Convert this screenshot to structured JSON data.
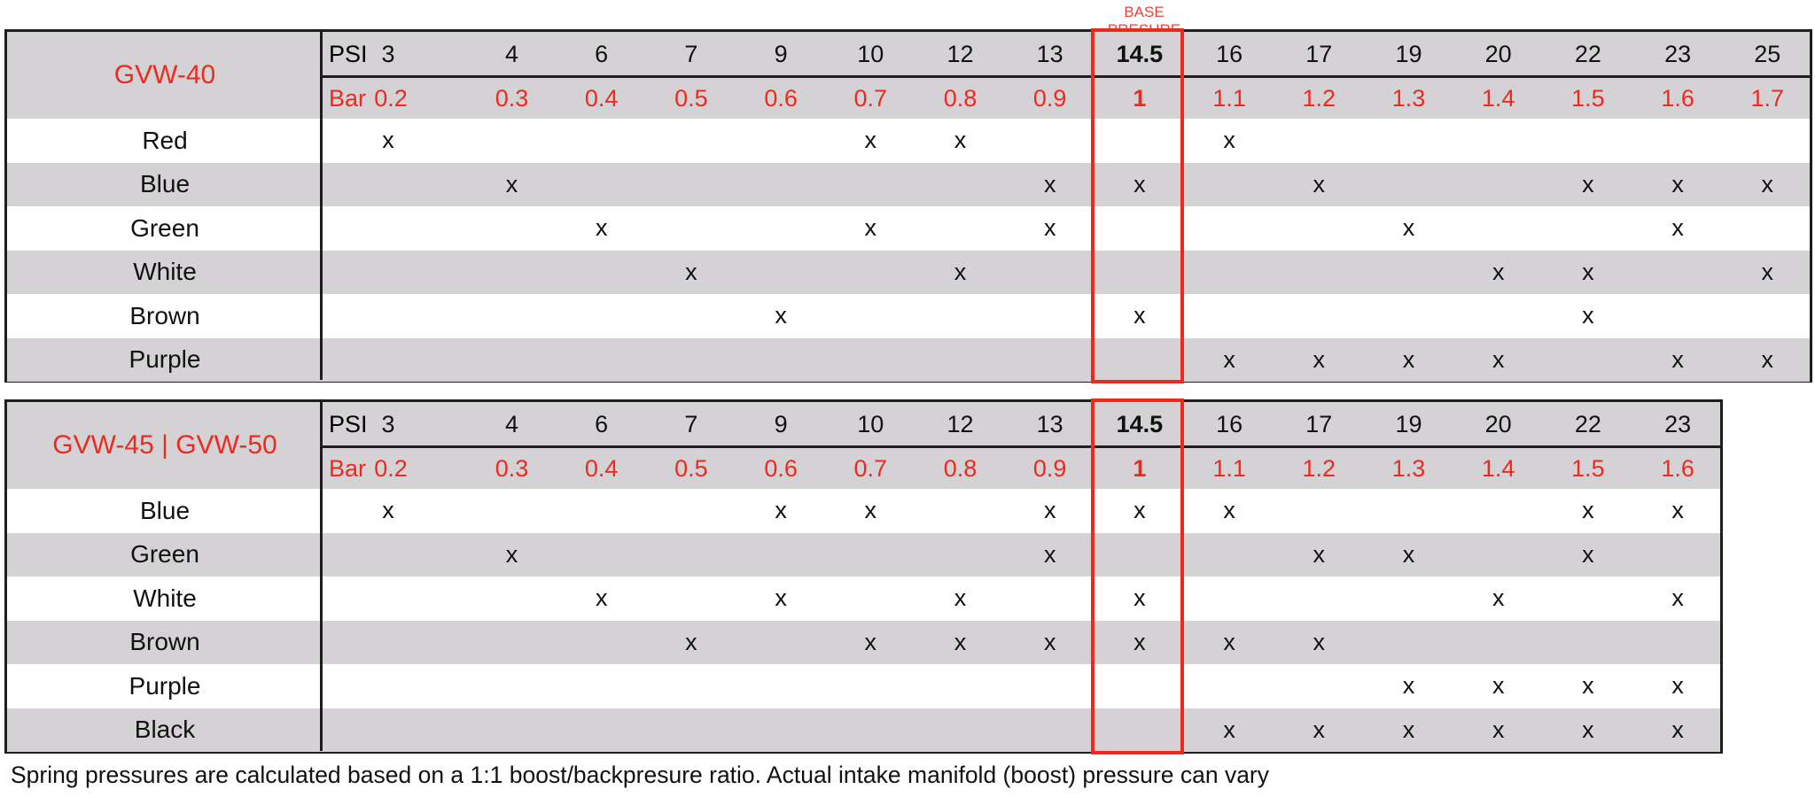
{
  "base_label": "BASE PRESURE",
  "colors": {
    "accent_red": "#ee2a1e",
    "row_gray": "#d5d2d6",
    "border": "#1e1e1e"
  },
  "psi_label": "PSI",
  "bar_label": "Bar",
  "base_psi": "14.5",
  "tables": [
    {
      "title": "GVW-40",
      "psi": [
        "3",
        "4",
        "6",
        "7",
        "9",
        "10",
        "12",
        "13",
        "14.5",
        "16",
        "17",
        "19",
        "20",
        "22",
        "23",
        "25"
      ],
      "bar": [
        "0.2",
        "0.3",
        "0.4",
        "0.5",
        "0.6",
        "0.7",
        "0.8",
        "0.9",
        "1",
        "1.1",
        "1.2",
        "1.3",
        "1.4",
        "1.5",
        "1.6",
        "1.7"
      ],
      "rows": [
        {
          "label": "Red",
          "marks": [
            "3",
            "10",
            "12",
            "16"
          ]
        },
        {
          "label": "Blue",
          "marks": [
            "4",
            "13",
            "14.5",
            "17",
            "22",
            "23",
            "25"
          ]
        },
        {
          "label": "Green",
          "marks": [
            "6",
            "10",
            "13",
            "19",
            "23"
          ]
        },
        {
          "label": "White",
          "marks": [
            "7",
            "12",
            "20",
            "22",
            "25"
          ]
        },
        {
          "label": "Brown",
          "marks": [
            "9",
            "14.5",
            "22"
          ]
        },
        {
          "label": "Purple",
          "marks": [
            "16",
            "17",
            "19",
            "20",
            "23",
            "25"
          ]
        }
      ]
    },
    {
      "title": "GVW-45 | GVW-50",
      "psi": [
        "3",
        "4",
        "6",
        "7",
        "9",
        "10",
        "12",
        "13",
        "14.5",
        "16",
        "17",
        "19",
        "20",
        "22",
        "23"
      ],
      "bar": [
        "0.2",
        "0.3",
        "0.4",
        "0.5",
        "0.6",
        "0.7",
        "0.8",
        "0.9",
        "1",
        "1.1",
        "1.2",
        "1.3",
        "1.4",
        "1.5",
        "1.6"
      ],
      "rows": [
        {
          "label": "Blue",
          "marks": [
            "3",
            "9",
            "10",
            "13",
            "14.5",
            "16",
            "22",
            "23"
          ]
        },
        {
          "label": "Green",
          "marks": [
            "4",
            "13",
            "17",
            "19",
            "22"
          ]
        },
        {
          "label": "White",
          "marks": [
            "6",
            "9",
            "12",
            "14.5",
            "20",
            "23"
          ]
        },
        {
          "label": "Brown",
          "marks": [
            "7",
            "10",
            "12",
            "13",
            "14.5",
            "16",
            "17"
          ]
        },
        {
          "label": "Purple",
          "marks": [
            "19",
            "20",
            "22",
            "23"
          ]
        },
        {
          "label": "Black",
          "marks": [
            "16",
            "17",
            "19",
            "20",
            "22",
            "23"
          ]
        }
      ]
    }
  ],
  "mark_symbol": "x",
  "footnote": "Spring pressures are calculated based on a 1:1 boost/backpresure ratio. Actual intake manifold (boost) pressure can vary"
}
